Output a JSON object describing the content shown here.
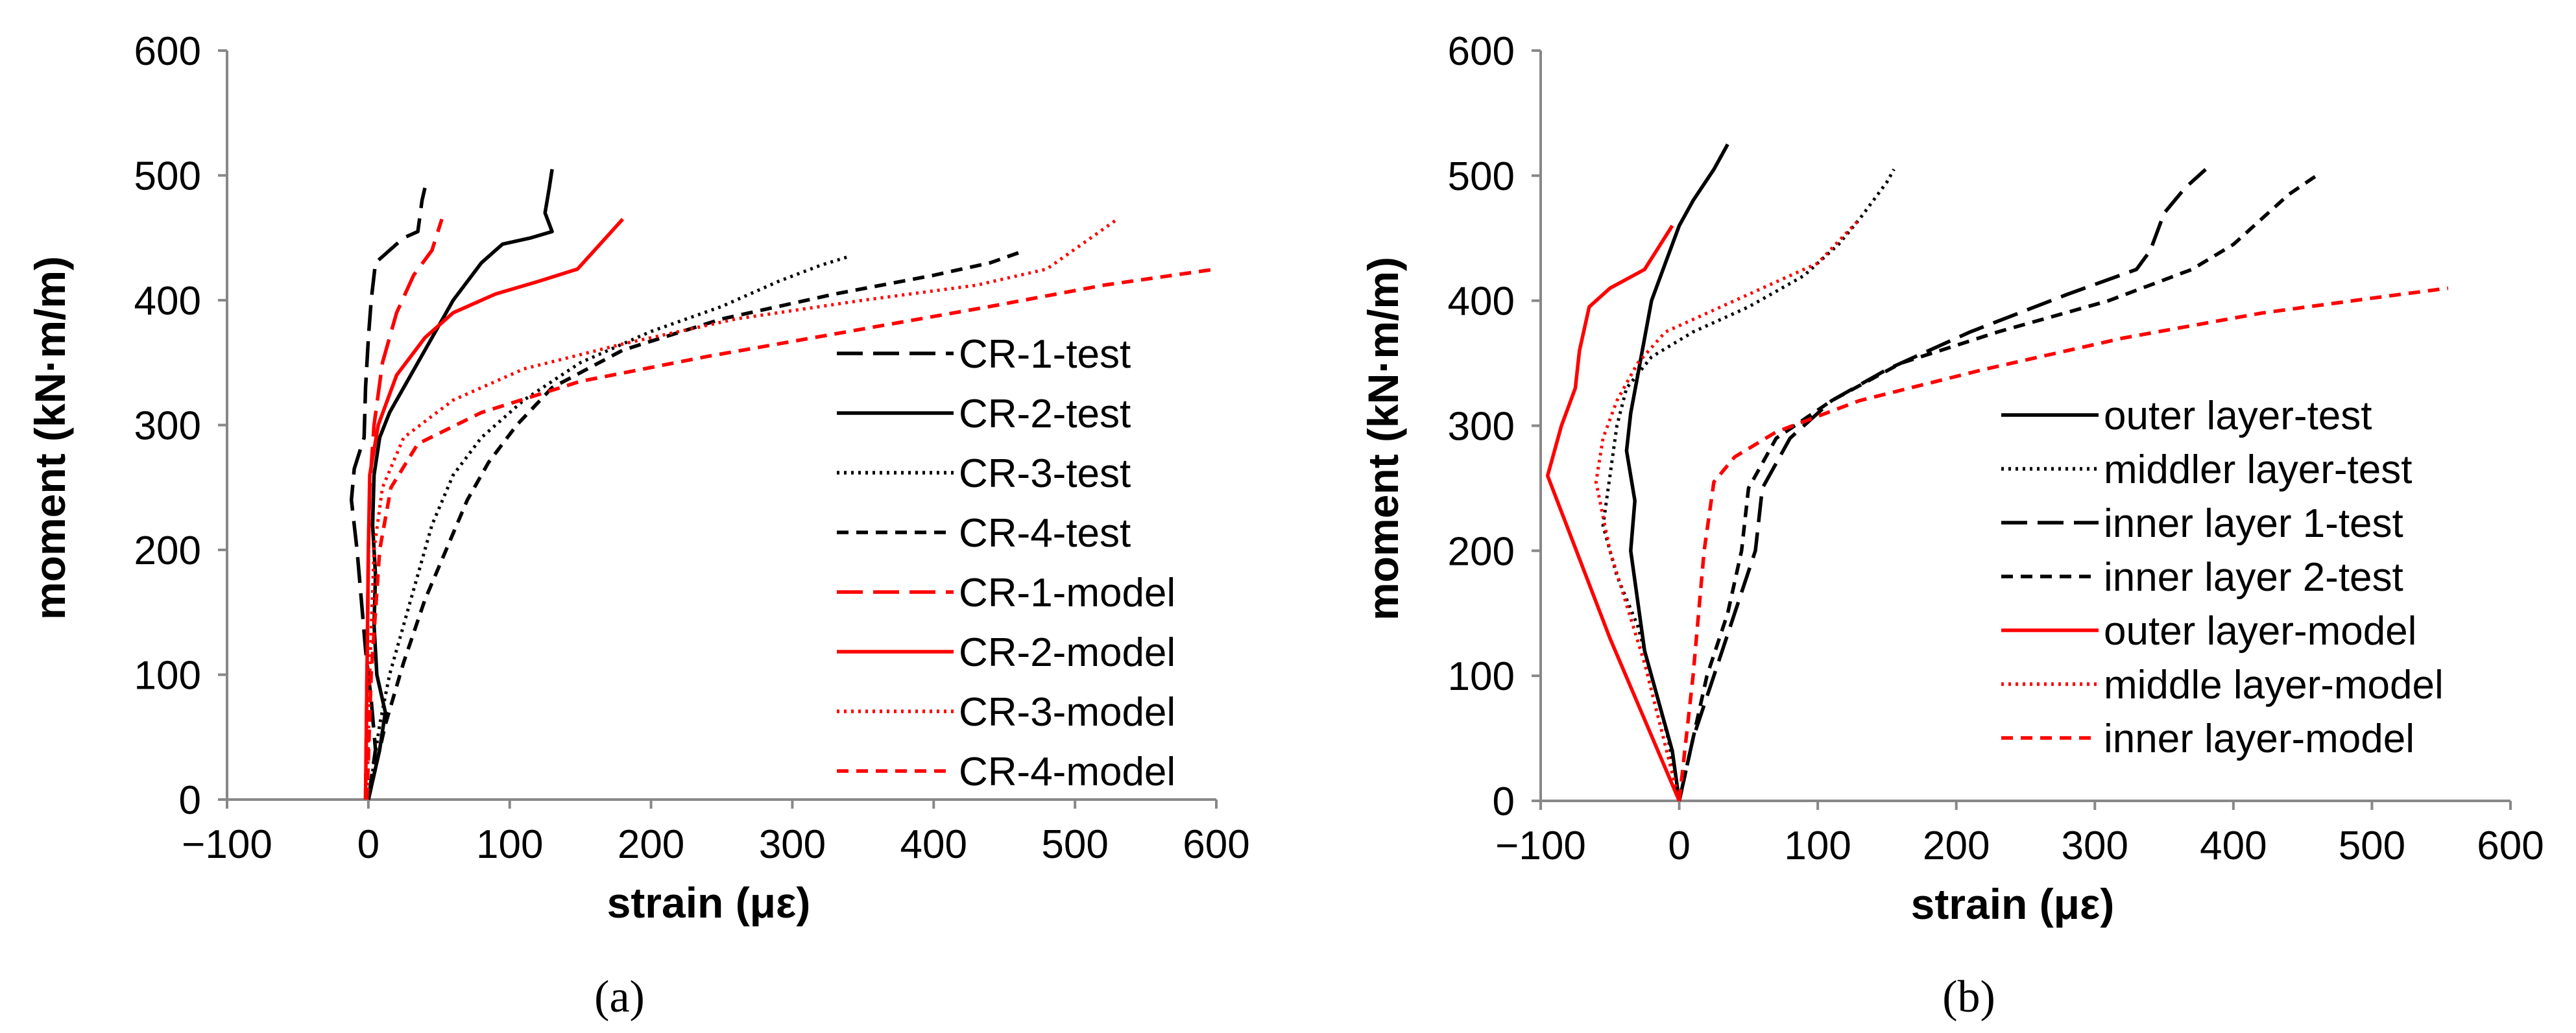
{
  "chart_data": [
    {
      "type": "line",
      "panel_label": "(a)",
      "xlabel": "strain (με)",
      "ylabel": "moment (kN·m/m)",
      "xlim": [
        -100,
        600
      ],
      "ylim": [
        0,
        600
      ],
      "xticks": [
        "−100",
        "0",
        "100",
        "200",
        "300",
        "400",
        "500",
        "600"
      ],
      "yticks": [
        "0",
        "100",
        "200",
        "300",
        "400",
        "500",
        "600"
      ],
      "grid": false,
      "legend_position": "right",
      "series": [
        {
          "name": "CR-1-test",
          "color": "#000000",
          "dash": "long-dash",
          "points": [
            [
              0,
              0
            ],
            [
              5,
              40
            ],
            [
              2,
              80
            ],
            [
              -2,
              120
            ],
            [
              -5,
              160
            ],
            [
              -8,
              200
            ],
            [
              -12,
              240
            ],
            [
              -10,
              265
            ],
            [
              -3,
              290
            ],
            [
              -2,
              330
            ],
            [
              0,
              370
            ],
            [
              2,
              400
            ],
            [
              5,
              430
            ],
            [
              15,
              440
            ],
            [
              25,
              450
            ],
            [
              35,
              455
            ],
            [
              38,
              480
            ],
            [
              40,
              490
            ]
          ]
        },
        {
          "name": "CR-2-test",
          "color": "#000000",
          "dash": "solid",
          "points": [
            [
              0,
              0
            ],
            [
              8,
              40
            ],
            [
              12,
              70
            ],
            [
              6,
              100
            ],
            [
              4,
              140
            ],
            [
              5,
              180
            ],
            [
              3,
              220
            ],
            [
              4,
              260
            ],
            [
              8,
              290
            ],
            [
              15,
              310
            ],
            [
              30,
              340
            ],
            [
              45,
              370
            ],
            [
              60,
              400
            ],
            [
              80,
              430
            ],
            [
              95,
              445
            ],
            [
              115,
              450
            ],
            [
              130,
              455
            ],
            [
              125,
              470
            ],
            [
              128,
              490
            ],
            [
              130,
              505
            ]
          ]
        },
        {
          "name": "CR-3-test",
          "color": "#000000",
          "dash": "dotted",
          "points": [
            [
              0,
              0
            ],
            [
              8,
              60
            ],
            [
              15,
              100
            ],
            [
              25,
              140
            ],
            [
              35,
              180
            ],
            [
              45,
              220
            ],
            [
              60,
              260
            ],
            [
              80,
              290
            ],
            [
              110,
              320
            ],
            [
              150,
              350
            ],
            [
              200,
              375
            ],
            [
              250,
              395
            ],
            [
              290,
              415
            ],
            [
              320,
              428
            ],
            [
              340,
              435
            ]
          ]
        },
        {
          "name": "CR-4-test",
          "color": "#000000",
          "dash": "short-dash",
          "points": [
            [
              0,
              0
            ],
            [
              12,
              60
            ],
            [
              25,
              110
            ],
            [
              40,
              160
            ],
            [
              55,
              200
            ],
            [
              70,
              240
            ],
            [
              85,
              270
            ],
            [
              105,
              300
            ],
            [
              130,
              330
            ],
            [
              180,
              360
            ],
            [
              250,
              385
            ],
            [
              330,
              405
            ],
            [
              400,
              420
            ],
            [
              440,
              430
            ],
            [
              465,
              440
            ]
          ]
        },
        {
          "name": "CR-1-model",
          "color": "#ff0000",
          "dash": "long-dash",
          "points": [
            [
              -2,
              0
            ],
            [
              -1,
              100
            ],
            [
              0,
              200
            ],
            [
              1,
              250
            ],
            [
              4,
              300
            ],
            [
              10,
              350
            ],
            [
              20,
              390
            ],
            [
              32,
              420
            ],
            [
              45,
              440
            ],
            [
              52,
              465
            ]
          ]
        },
        {
          "name": "CR-2-model",
          "color": "#ff0000",
          "dash": "solid",
          "points": [
            [
              -2,
              0
            ],
            [
              -1,
              100
            ],
            [
              0,
              200
            ],
            [
              1,
              260
            ],
            [
              7,
              300
            ],
            [
              20,
              340
            ],
            [
              40,
              370
            ],
            [
              60,
              390
            ],
            [
              90,
              405
            ],
            [
              120,
              415
            ],
            [
              148,
              425
            ],
            [
              180,
              465
            ]
          ]
        },
        {
          "name": "CR-3-model",
          "color": "#ff0000",
          "dash": "dotted",
          "points": [
            [
              -1,
              0
            ],
            [
              1,
              100
            ],
            [
              4,
              200
            ],
            [
              10,
              250
            ],
            [
              25,
              290
            ],
            [
              60,
              320
            ],
            [
              110,
              345
            ],
            [
              180,
              365
            ],
            [
              260,
              385
            ],
            [
              350,
              400
            ],
            [
              430,
              412
            ],
            [
              480,
              425
            ],
            [
              530,
              465
            ]
          ]
        },
        {
          "name": "CR-4-model",
          "color": "#ff0000",
          "dash": "short-dash",
          "points": [
            [
              -1,
              0
            ],
            [
              2,
              100
            ],
            [
              8,
              200
            ],
            [
              16,
              250
            ],
            [
              35,
              285
            ],
            [
              80,
              310
            ],
            [
              150,
              335
            ],
            [
              240,
              355
            ],
            [
              340,
              375
            ],
            [
              440,
              395
            ],
            [
              520,
              412
            ],
            [
              600,
              425
            ]
          ]
        }
      ]
    },
    {
      "type": "line",
      "panel_label": "(b)",
      "xlabel": "strain (με)",
      "ylabel": "moment (kN·m/m)",
      "xlim": [
        -100,
        600
      ],
      "ylim": [
        0,
        600
      ],
      "xticks": [
        "−100",
        "0",
        "100",
        "200",
        "300",
        "400",
        "500",
        "600"
      ],
      "yticks": [
        "0",
        "100",
        "200",
        "300",
        "400",
        "500",
        "600"
      ],
      "grid": false,
      "legend_position": "right",
      "series": [
        {
          "name": "outer layer-test",
          "color": "#000000",
          "dash": "solid",
          "points": [
            [
              0,
              0
            ],
            [
              -5,
              40
            ],
            [
              -15,
              80
            ],
            [
              -25,
              120
            ],
            [
              -30,
              160
            ],
            [
              -35,
              200
            ],
            [
              -32,
              240
            ],
            [
              -38,
              280
            ],
            [
              -35,
              310
            ],
            [
              -30,
              340
            ],
            [
              -25,
              370
            ],
            [
              -20,
              400
            ],
            [
              -10,
              430
            ],
            [
              0,
              460
            ],
            [
              10,
              480
            ],
            [
              25,
              505
            ],
            [
              35,
              525
            ]
          ]
        },
        {
          "name": "middler layer-test",
          "color": "#000000",
          "dash": "dotted",
          "points": [
            [
              0,
              0
            ],
            [
              -8,
              50
            ],
            [
              -20,
              100
            ],
            [
              -30,
              140
            ],
            [
              -45,
              180
            ],
            [
              -55,
              220
            ],
            [
              -50,
              260
            ],
            [
              -45,
              300
            ],
            [
              -38,
              330
            ],
            [
              -20,
              355
            ],
            [
              10,
              375
            ],
            [
              50,
              395
            ],
            [
              90,
              420
            ],
            [
              115,
              445
            ],
            [
              130,
              465
            ],
            [
              140,
              480
            ],
            [
              150,
              495
            ],
            [
              155,
              505
            ]
          ]
        },
        {
          "name": "inner layer 1-test",
          "color": "#000000",
          "dash": "long-dash",
          "points": [
            [
              0,
              0
            ],
            [
              10,
              50
            ],
            [
              25,
              100
            ],
            [
              40,
              150
            ],
            [
              55,
              200
            ],
            [
              60,
              250
            ],
            [
              80,
              290
            ],
            [
              110,
              320
            ],
            [
              150,
              345
            ],
            [
              210,
              375
            ],
            [
              280,
              405
            ],
            [
              330,
              425
            ],
            [
              340,
              440
            ],
            [
              350,
              470
            ],
            [
              365,
              490
            ],
            [
              380,
              505
            ]
          ]
        },
        {
          "name": "inner layer 2-test",
          "color": "#000000",
          "dash": "short-dash",
          "points": [
            [
              0,
              0
            ],
            [
              10,
              50
            ],
            [
              20,
              100
            ],
            [
              35,
              150
            ],
            [
              45,
              200
            ],
            [
              50,
              250
            ],
            [
              70,
              290
            ],
            [
              110,
              320
            ],
            [
              160,
              350
            ],
            [
              230,
              375
            ],
            [
              310,
              400
            ],
            [
              370,
              425
            ],
            [
              400,
              445
            ],
            [
              420,
              465
            ],
            [
              440,
              485
            ],
            [
              460,
              500
            ]
          ]
        },
        {
          "name": "outer layer-model",
          "color": "#ff0000",
          "dash": "solid",
          "points": [
            [
              0,
              0
            ],
            [
              -50,
              130
            ],
            [
              -95,
              260
            ],
            [
              -85,
              300
            ],
            [
              -75,
              330
            ],
            [
              -72,
              360
            ],
            [
              -65,
              395
            ],
            [
              -50,
              410
            ],
            [
              -25,
              425
            ],
            [
              -5,
              460
            ]
          ]
        },
        {
          "name": "middle layer-model",
          "color": "#ff0000",
          "dash": "dotted",
          "points": [
            [
              0,
              0
            ],
            [
              -25,
              110
            ],
            [
              -50,
              200
            ],
            [
              -60,
              255
            ],
            [
              -55,
              290
            ],
            [
              -45,
              320
            ],
            [
              -30,
              350
            ],
            [
              -10,
              375
            ],
            [
              30,
              395
            ],
            [
              70,
              415
            ],
            [
              100,
              430
            ],
            [
              130,
              465
            ]
          ]
        },
        {
          "name": "inner layer-model",
          "color": "#ff0000",
          "dash": "short-dash",
          "points": [
            [
              0,
              0
            ],
            [
              10,
              100
            ],
            [
              18,
              200
            ],
            [
              25,
              255
            ],
            [
              40,
              275
            ],
            [
              70,
              295
            ],
            [
              130,
              320
            ],
            [
              220,
              345
            ],
            [
              320,
              370
            ],
            [
              420,
              390
            ],
            [
              500,
              402
            ],
            [
              555,
              410
            ]
          ]
        }
      ]
    }
  ]
}
